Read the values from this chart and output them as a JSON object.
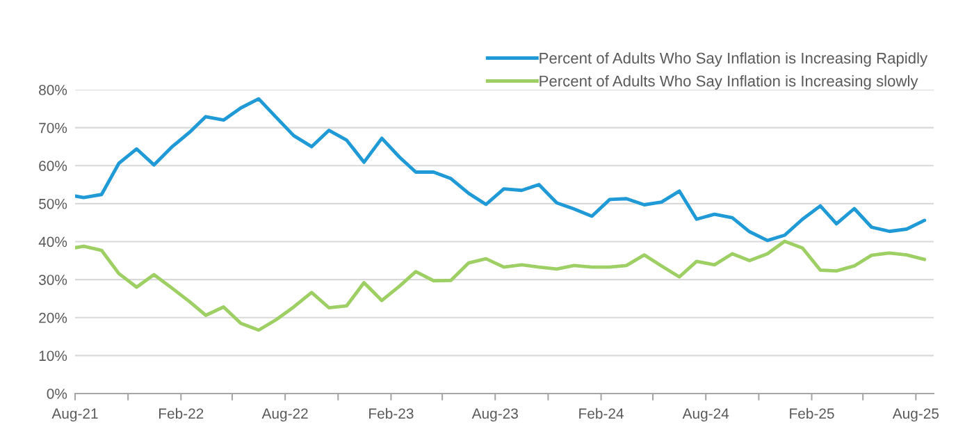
{
  "chart_data": {
    "type": "line",
    "x": [
      "2021-08-01",
      "2021-08-16",
      "2021-09-16",
      "2021-10-16",
      "2021-11-16",
      "2021-12-16",
      "2022-01-16",
      "2022-02-16",
      "2022-03-16",
      "2022-04-16",
      "2022-05-16",
      "2022-06-16",
      "2022-07-16",
      "2022-08-16",
      "2022-09-16",
      "2022-10-16",
      "2022-11-16",
      "2022-12-16",
      "2023-01-16",
      "2023-02-16",
      "2023-03-16",
      "2023-04-16",
      "2023-05-16",
      "2023-06-16",
      "2023-07-16",
      "2023-08-16",
      "2023-09-16",
      "2023-10-16",
      "2023-11-16",
      "2023-12-16",
      "2024-01-16",
      "2024-02-16",
      "2024-03-16",
      "2024-04-16",
      "2024-05-16",
      "2024-06-16",
      "2024-07-16",
      "2024-08-16",
      "2024-09-16",
      "2024-10-16",
      "2024-11-16",
      "2024-12-16",
      "2025-01-16",
      "2025-02-16",
      "2025-03-16",
      "2025-04-16",
      "2025-05-16",
      "2025-06-16",
      "2025-07-16",
      "2025-08-16"
    ],
    "series": [
      {
        "name": "Percent of Adults Who Say Inflation is Increasing Rapidly",
        "color": "#1f9ad6",
        "values": [
          52.0,
          51.6,
          52.4,
          60.6,
          64.4,
          60.2,
          64.9,
          68.8,
          72.9,
          72.0,
          75.2,
          77.6,
          72.8,
          67.9,
          65.0,
          69.3,
          66.7,
          60.9,
          67.2,
          62.2,
          58.3,
          58.3,
          56.6,
          52.7,
          49.8,
          53.9,
          53.5,
          55.0,
          50.2,
          48.6,
          46.7,
          51.1,
          51.3,
          49.7,
          50.4,
          53.3,
          45.9,
          47.2,
          46.3,
          42.6,
          40.3,
          41.7,
          45.9,
          49.4,
          44.7,
          48.7,
          43.8,
          42.7,
          43.3,
          45.6
        ]
      },
      {
        "name": "Percent of Adults Who Say Inflation is Increasing slowly",
        "color": "#9dcf64",
        "values": [
          38.4,
          38.8,
          37.7,
          31.6,
          28.0,
          31.3,
          27.8,
          24.2,
          20.6,
          22.8,
          18.5,
          16.7,
          19.4,
          22.8,
          26.6,
          22.6,
          23.1,
          29.2,
          24.5,
          28.3,
          32.1,
          29.7,
          29.8,
          34.4,
          35.5,
          33.3,
          33.9,
          33.3,
          32.8,
          33.7,
          33.3,
          33.3,
          33.7,
          36.5,
          33.6,
          30.7,
          34.8,
          33.9,
          36.8,
          35.0,
          36.8,
          40.1,
          38.3,
          32.5,
          32.3,
          33.6,
          36.4,
          37.0,
          36.5,
          35.3
        ]
      }
    ],
    "xlim": [
      "2021-08-01",
      "2025-09-01"
    ],
    "xticks": [
      {
        "value": "2021-08-01",
        "label": "Aug-21"
      },
      {
        "value": "2021-11-01",
        "label": null
      },
      {
        "value": "2022-02-01",
        "label": "Feb-22"
      },
      {
        "value": "2022-05-01",
        "label": null
      },
      {
        "value": "2022-08-01",
        "label": "Aug-22"
      },
      {
        "value": "2022-11-01",
        "label": null
      },
      {
        "value": "2023-02-01",
        "label": "Feb-23"
      },
      {
        "value": "2023-05-01",
        "label": null
      },
      {
        "value": "2023-08-01",
        "label": "Aug-23"
      },
      {
        "value": "2023-11-01",
        "label": null
      },
      {
        "value": "2024-02-01",
        "label": "Feb-24"
      },
      {
        "value": "2024-05-01",
        "label": null
      },
      {
        "value": "2024-08-01",
        "label": "Aug-24"
      },
      {
        "value": "2024-11-01",
        "label": null
      },
      {
        "value": "2025-02-01",
        "label": "Feb-25"
      },
      {
        "value": "2025-05-01",
        "label": null
      },
      {
        "value": "2025-08-01",
        "label": "Aug-25"
      }
    ],
    "ylim": [
      0,
      80
    ],
    "yticks": [
      {
        "value": 0,
        "label": "0%"
      },
      {
        "value": 10,
        "label": "10%"
      },
      {
        "value": 20,
        "label": "20%"
      },
      {
        "value": 30,
        "label": "30%"
      },
      {
        "value": 40,
        "label": "40%"
      },
      {
        "value": 50,
        "label": "50%"
      },
      {
        "value": 60,
        "label": "60%"
      },
      {
        "value": 70,
        "label": "70%"
      },
      {
        "value": 80,
        "label": "80%"
      }
    ],
    "grid": "y",
    "legend": "top right",
    "marker": "none",
    "line_style": "solid"
  }
}
